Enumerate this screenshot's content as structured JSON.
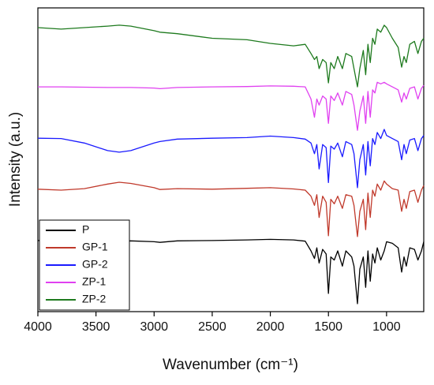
{
  "chart_data": {
    "type": "line",
    "xlabel": "Wavenumber (cm⁻¹)",
    "ylabel": "Intensity (a.u.)",
    "xlim": [
      4000,
      680
    ],
    "xticks": [
      4000,
      3500,
      3000,
      2500,
      2000,
      1500,
      1000
    ],
    "ylim": [
      0,
      100
    ],
    "legend": "lower left",
    "x": [
      4000,
      3800,
      3600,
      3400,
      3300,
      3200,
      3000,
      2950,
      2800,
      2500,
      2200,
      2000,
      1800,
      1700,
      1650,
      1620,
      1600,
      1580,
      1550,
      1520,
      1500,
      1480,
      1450,
      1420,
      1380,
      1350,
      1300,
      1280,
      1250,
      1230,
      1200,
      1180,
      1160,
      1140,
      1120,
      1100,
      1080,
      1050,
      1020,
      1000,
      950,
      900,
      870,
      850,
      830,
      800,
      760,
      730,
      700,
      680
    ],
    "series": [
      {
        "name": "P",
        "color": "#000000",
        "values": [
          23.4,
          23.4,
          23.3,
          23.2,
          23.2,
          23.3,
          23.0,
          22.8,
          23.3,
          23.4,
          23.6,
          23.8,
          23.6,
          23.2,
          20.0,
          17.5,
          21.0,
          16.0,
          20.5,
          19.0,
          6.0,
          18.0,
          17.0,
          20.0,
          15.0,
          20.0,
          18.0,
          15.0,
          2.6,
          14.0,
          18.0,
          8.0,
          20.0,
          10.0,
          19.0,
          16.0,
          21.0,
          17.0,
          20.0,
          23.0,
          22.5,
          21.0,
          13.0,
          18.0,
          15.0,
          21.0,
          20.5,
          17.0,
          20.0,
          23.0
        ]
      },
      {
        "name": "GP-1",
        "color": "#c0392b",
        "values": [
          40.3,
          40.0,
          40.5,
          42.0,
          42.6,
          42.2,
          40.8,
          40.2,
          40.5,
          40.3,
          40.6,
          40.8,
          40.4,
          40.0,
          38.0,
          35.0,
          38.5,
          31.0,
          38.0,
          36.0,
          25.0,
          37.0,
          35.5,
          38.0,
          34.0,
          38.5,
          38.0,
          35.0,
          24.7,
          33.0,
          37.0,
          27.0,
          39.0,
          31.0,
          40.0,
          38.0,
          42.0,
          40.0,
          43.0,
          42.0,
          40.5,
          40.0,
          33.0,
          37.0,
          34.0,
          39.5,
          40.0,
          36.0,
          40.0,
          41.5
        ]
      },
      {
        "name": "GP-2",
        "color": "#1a1aff",
        "values": [
          57.1,
          57.0,
          55.5,
          53.0,
          52.5,
          53.0,
          55.5,
          56.0,
          56.8,
          57.1,
          57.3,
          57.8,
          57.3,
          56.8,
          55.5,
          52.0,
          55.0,
          47.0,
          55.0,
          54.0,
          42.5,
          54.5,
          53.5,
          55.5,
          51.0,
          56.0,
          55.0,
          52.0,
          40.8,
          50.0,
          55.0,
          45.0,
          56.0,
          48.0,
          57.0,
          55.0,
          59.0,
          57.0,
          60.0,
          58.0,
          57.0,
          56.0,
          50.0,
          55.0,
          52.0,
          56.5,
          57.0,
          53.0,
          57.0,
          58.0
        ]
      },
      {
        "name": "ZP-1",
        "color": "#e040f0",
        "values": [
          74.0,
          74.0,
          73.9,
          73.8,
          73.8,
          73.8,
          73.6,
          73.4,
          73.8,
          74.0,
          74.1,
          74.3,
          74.2,
          74.0,
          70.0,
          64.0,
          70.0,
          68.0,
          71.0,
          70.0,
          62.0,
          71.0,
          69.5,
          72.0,
          68.0,
          72.5,
          71.5,
          68.0,
          59.7,
          66.0,
          71.0,
          62.0,
          72.5,
          64.0,
          73.0,
          72.0,
          75.5,
          75.0,
          75.5,
          75.0,
          74.0,
          73.0,
          69.0,
          72.0,
          70.0,
          73.5,
          74.0,
          70.0,
          73.5,
          74.5
        ]
      },
      {
        "name": "ZP-2",
        "color": "#1e7a1e",
        "values": [
          93.5,
          93.0,
          93.5,
          94.0,
          94.3,
          94.0,
          92.5,
          92.0,
          91.5,
          90.0,
          89.5,
          88.3,
          87.5,
          88.0,
          85.0,
          83.0,
          84.0,
          80.0,
          83.0,
          82.0,
          75.3,
          82.0,
          80.0,
          84.0,
          80.0,
          85.0,
          84.0,
          80.0,
          74.0,
          80.0,
          86.0,
          78.0,
          88.0,
          82.0,
          90.0,
          88.0,
          93.0,
          92.0,
          94.3,
          93.5,
          90.0,
          87.0,
          80.5,
          84.0,
          82.0,
          88.0,
          89.0,
          85.0,
          89.0,
          90.0
        ]
      }
    ]
  }
}
